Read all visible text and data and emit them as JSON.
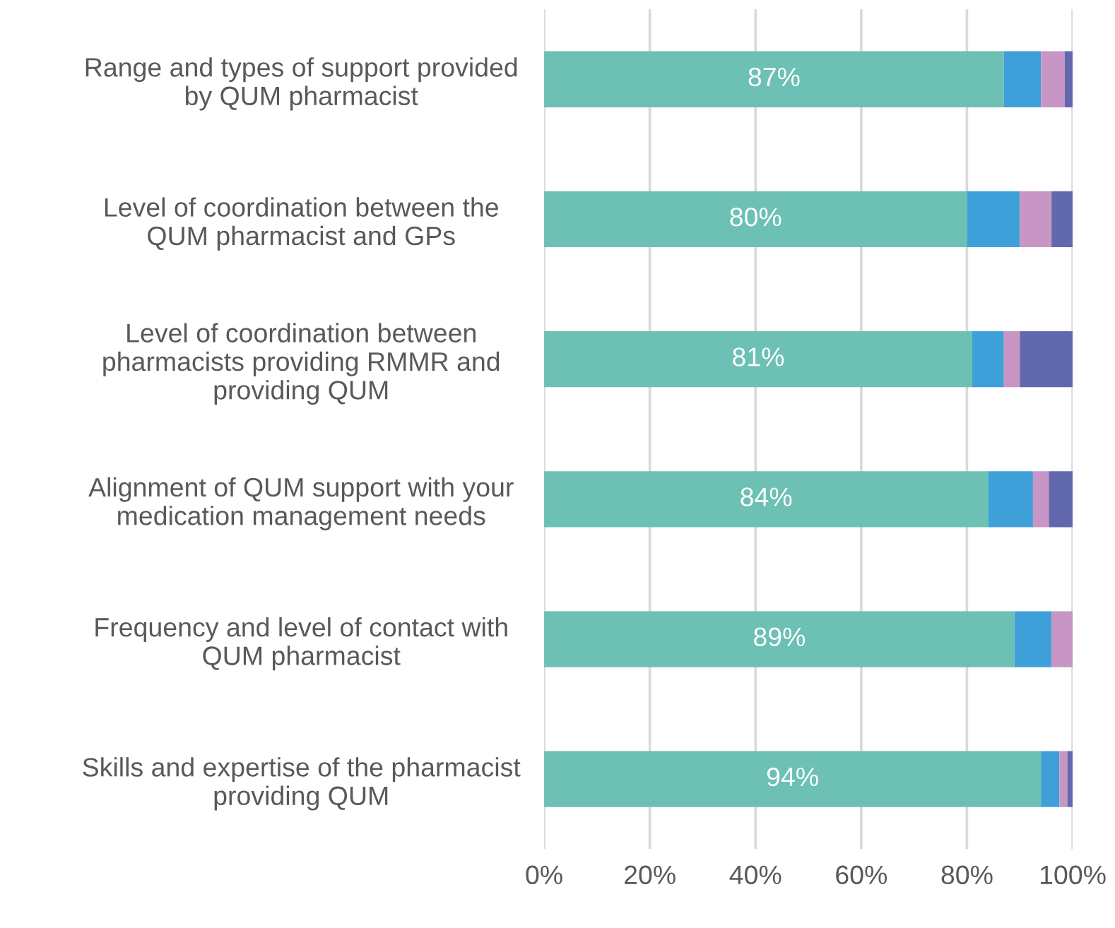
{
  "chart_data": {
    "type": "bar",
    "orientation": "horizontal",
    "stacked": true,
    "categories": [
      "Range and types of support provided\nby QUM pharmacist",
      "Level of coordination between the\nQUM pharmacist and GPs",
      "Level of coordination between\npharmacists providing RMMR and\nproviding QUM",
      "Alignment of QUM support with your\nmedication management needs",
      "Frequency and level of contact with\nQUM pharmacist",
      "Skills and expertise of the pharmacist\nproviding QUM"
    ],
    "series": [
      {
        "color": "#6cc0b4",
        "values": [
          87,
          80,
          81,
          84,
          89,
          94
        ],
        "value_labels": [
          "87%",
          "80%",
          "81%",
          "84%",
          "89%",
          "94%"
        ]
      },
      {
        "color": "#3fa0d9",
        "values": [
          7,
          10,
          6,
          8.5,
          7,
          3.5
        ]
      },
      {
        "color": "#c796c4",
        "values": [
          4.5,
          6,
          3,
          3,
          4,
          1.5
        ]
      },
      {
        "color": "#6268ae",
        "values": [
          1.5,
          4,
          10,
          4.5,
          null,
          1
        ]
      }
    ],
    "xlim": [
      0,
      100
    ],
    "xticks": [
      {
        "value": 0,
        "label": "0%"
      },
      {
        "value": 20,
        "label": "20%"
      },
      {
        "value": 40,
        "label": "40%"
      },
      {
        "value": 60,
        "label": "60%"
      },
      {
        "value": 80,
        "label": "80%"
      },
      {
        "value": 100,
        "label": "100%"
      }
    ],
    "grid": "x",
    "legend": false
  }
}
